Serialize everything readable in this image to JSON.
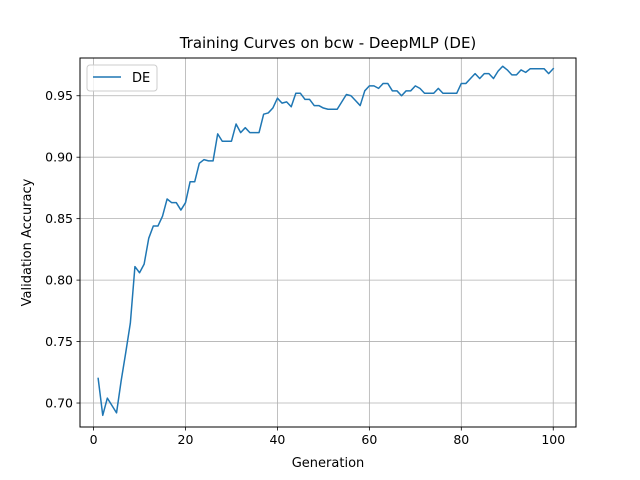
{
  "chart_data": {
    "type": "line",
    "title": "Training Curves on bcw - DeepMLP (DE)",
    "xlabel": "Generation",
    "ylabel": "Validation Accuracy",
    "xlim": [
      -2.95,
      104.95
    ],
    "ylim": [
      0.6805,
      0.9807
    ],
    "xticks": [
      0,
      20,
      40,
      60,
      80,
      100
    ],
    "yticks": [
      0.7,
      0.75,
      0.8,
      0.85,
      0.9,
      0.95
    ],
    "grid": true,
    "legend": "upper-left",
    "series": [
      {
        "name": "DE",
        "color": "#1f77b4",
        "x": [
          1,
          2,
          3,
          4,
          5,
          6,
          7,
          8,
          9,
          10,
          11,
          12,
          13,
          14,
          15,
          16,
          17,
          18,
          19,
          20,
          21,
          22,
          23,
          24,
          25,
          26,
          27,
          28,
          29,
          30,
          31,
          32,
          33,
          34,
          35,
          36,
          37,
          38,
          39,
          40,
          41,
          42,
          43,
          44,
          45,
          46,
          47,
          48,
          49,
          50,
          51,
          52,
          53,
          54,
          55,
          56,
          57,
          58,
          59,
          60,
          61,
          62,
          63,
          64,
          65,
          66,
          67,
          68,
          69,
          70,
          71,
          72,
          73,
          74,
          75,
          76,
          77,
          78,
          79,
          80,
          81,
          82,
          83,
          84,
          85,
          86,
          87,
          88,
          89,
          90,
          91,
          92,
          93,
          94,
          95,
          96,
          97,
          98,
          99,
          100
        ],
        "y": [
          0.72,
          0.69,
          0.704,
          0.698,
          0.692,
          0.718,
          0.741,
          0.765,
          0.811,
          0.806,
          0.813,
          0.834,
          0.844,
          0.844,
          0.852,
          0.866,
          0.863,
          0.863,
          0.857,
          0.863,
          0.88,
          0.88,
          0.895,
          0.898,
          0.897,
          0.897,
          0.919,
          0.913,
          0.913,
          0.913,
          0.927,
          0.92,
          0.924,
          0.92,
          0.92,
          0.92,
          0.935,
          0.936,
          0.94,
          0.948,
          0.944,
          0.945,
          0.941,
          0.952,
          0.952,
          0.947,
          0.947,
          0.942,
          0.942,
          0.94,
          0.939,
          0.939,
          0.939,
          0.945,
          0.951,
          0.95,
          0.946,
          0.942,
          0.954,
          0.958,
          0.958,
          0.956,
          0.96,
          0.96,
          0.954,
          0.954,
          0.95,
          0.954,
          0.954,
          0.958,
          0.956,
          0.952,
          0.952,
          0.952,
          0.956,
          0.952,
          0.952,
          0.952,
          0.952,
          0.96,
          0.96,
          0.964,
          0.968,
          0.964,
          0.968,
          0.968,
          0.964,
          0.97,
          0.974,
          0.971,
          0.967,
          0.967,
          0.971,
          0.969,
          0.972,
          0.972,
          0.972,
          0.972,
          0.968,
          0.972
        ]
      }
    ]
  }
}
